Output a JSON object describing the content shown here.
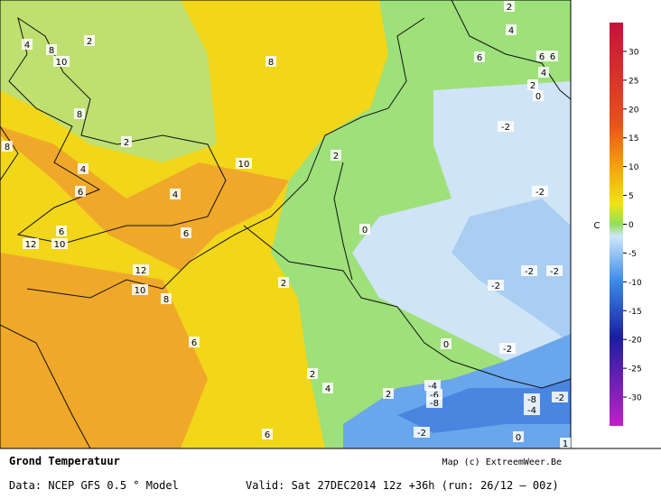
{
  "map": {
    "contour_labels": [
      "4",
      "8",
      "2",
      "10",
      "8",
      "8",
      "2",
      "8",
      "4",
      "10",
      "2",
      "6",
      "4",
      "6",
      "6",
      "12",
      "10",
      "0",
      "12",
      "10",
      "8",
      "2",
      "6",
      "2",
      "4",
      "2",
      "6",
      "0",
      "-2",
      "-2",
      "-2",
      "-2",
      "-2",
      "-2",
      "-4",
      "-6",
      "-8",
      "-8",
      "-4",
      "-2",
      "-2",
      "0",
      "2",
      "4",
      "6",
      "6",
      "6",
      "4",
      "2",
      "0",
      "1"
    ]
  },
  "colorbar": {
    "unit": "C",
    "lim": [
      -35,
      35
    ],
    "ticks": [
      30,
      25,
      20,
      15,
      10,
      5,
      0,
      -5,
      -10,
      -15,
      -20,
      -25,
      -30
    ]
  },
  "footer": {
    "title": "Grond Temperatuur",
    "credit": "Map (c) ExtreemWeer.Be",
    "source": "Data: NCEP GFS 0.5 ° Model",
    "valid": "Valid: Sat 27DEC2014 12z +36h (run: 26/12 — 00z)"
  }
}
